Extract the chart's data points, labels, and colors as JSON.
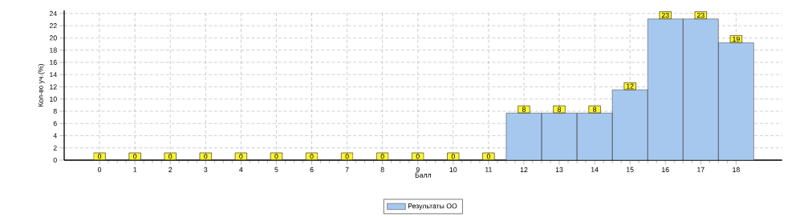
{
  "chart_data": {
    "type": "bar",
    "xlabel": "Балл",
    "ylabel": "Кол-во уч.(%)",
    "categories": [
      "0",
      "1",
      "2",
      "3",
      "4",
      "5",
      "6",
      "7",
      "8",
      "9",
      "10",
      "11",
      "12",
      "13",
      "14",
      "15",
      "16",
      "17",
      "18"
    ],
    "series": [
      {
        "name": "Результаты ОО",
        "color": "#a6c8ee",
        "values": [
          0,
          0,
          0,
          0,
          0,
          0,
          0,
          0,
          0,
          0,
          0,
          0,
          7.7,
          7.7,
          7.7,
          11.5,
          23.1,
          23.1,
          19.2
        ],
        "value_labels": [
          "0",
          "0",
          "0",
          "0",
          "0",
          "0",
          "0",
          "0",
          "0",
          "0",
          "0",
          "0",
          "8",
          "8",
          "8",
          "12",
          "23",
          "23",
          "19"
        ]
      }
    ],
    "ylim": [
      0,
      24.5
    ],
    "yticks": [
      0,
      2,
      4,
      6,
      8,
      10,
      12,
      14,
      16,
      18,
      20,
      22,
      24
    ],
    "grid": true,
    "legend": "bottom"
  }
}
